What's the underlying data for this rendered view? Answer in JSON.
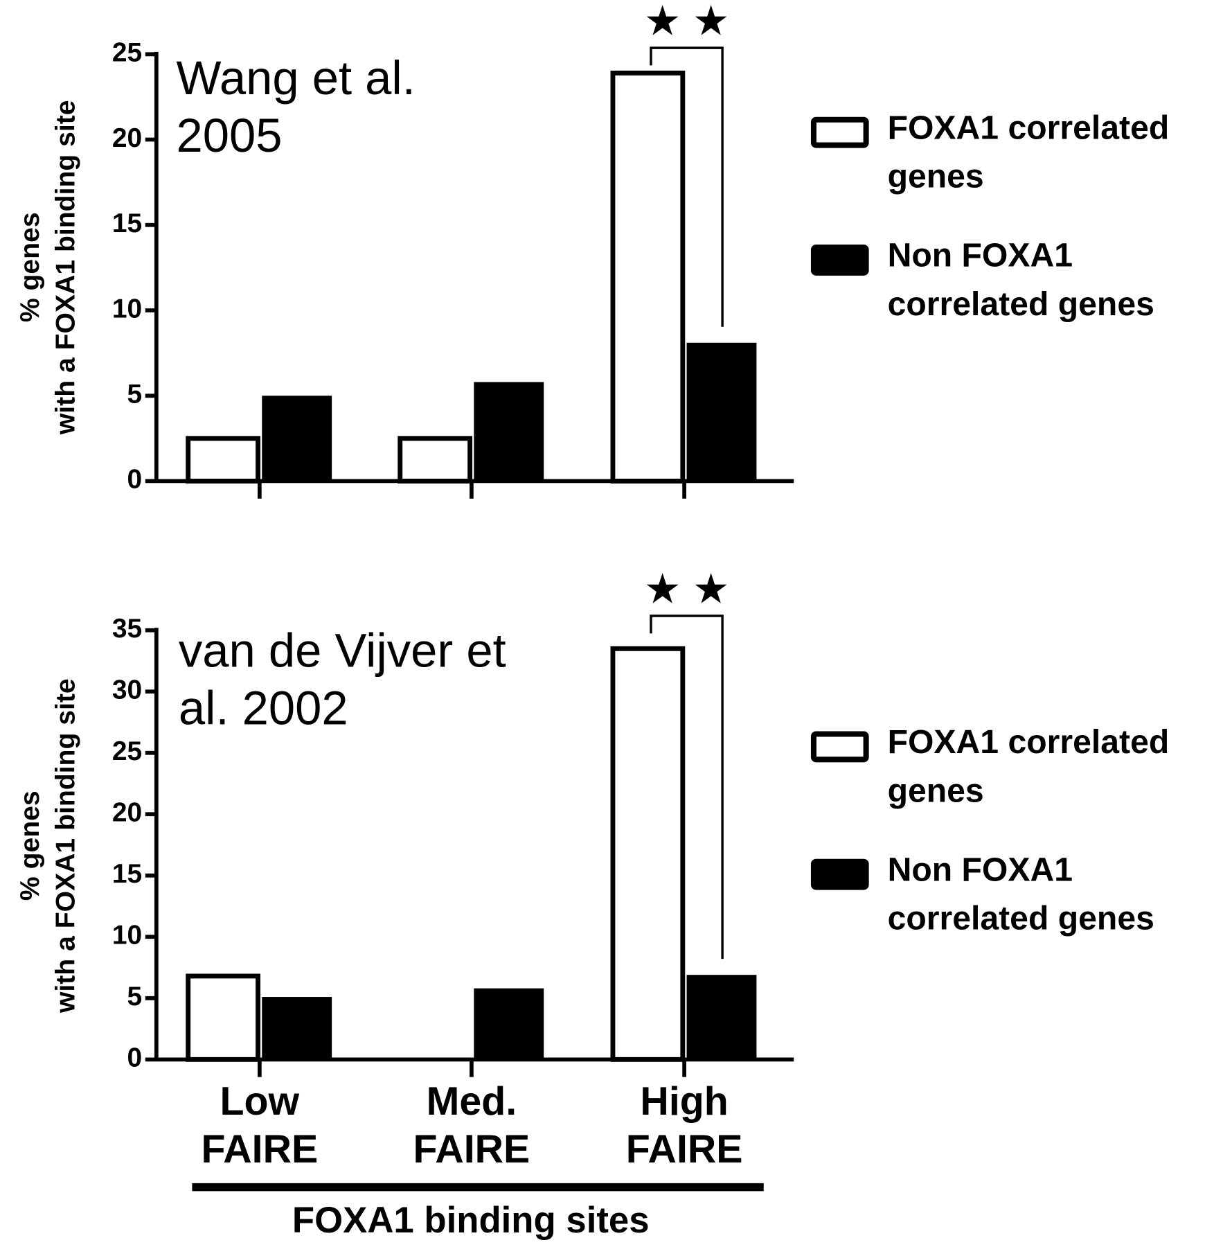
{
  "chart_data": [
    {
      "type": "bar",
      "title": "Wang et al. 2005",
      "ylabel": [
        "% genes",
        "with a FOXA1 binding site"
      ],
      "categories": [
        null,
        null,
        null
      ],
      "series": [
        {
          "name": "FOXA1 correlated genes",
          "color": "#ffffff",
          "values": [
            2.5,
            2.5,
            23.9
          ]
        },
        {
          "name": "Non FOXA1 correlated genes",
          "color": "#000000",
          "values": [
            5.0,
            5.8,
            8.1
          ]
        }
      ],
      "ylim": [
        0,
        25
      ],
      "yticks": [
        0,
        5,
        10,
        15,
        20,
        25
      ],
      "annotation": "★ ★"
    },
    {
      "type": "bar",
      "title": "van de Vijver et al. 2002",
      "ylabel": [
        "% genes",
        "with a FOXA1 binding site"
      ],
      "categories": [
        "Low FAIRE",
        "Med. FAIRE",
        "High FAIRE"
      ],
      "series": [
        {
          "name": "FOXA1 correlated genes",
          "color": "#ffffff",
          "values": [
            6.8,
            0,
            33.5
          ]
        },
        {
          "name": "Non FOXA1 correlated genes",
          "color": "#000000",
          "values": [
            5.1,
            5.8,
            6.9
          ]
        }
      ],
      "ylim": [
        0,
        35
      ],
      "yticks": [
        0,
        5,
        10,
        15,
        20,
        25,
        30,
        35
      ],
      "annotation": "★ ★",
      "xlabel": "FOXA1 binding sites"
    }
  ]
}
